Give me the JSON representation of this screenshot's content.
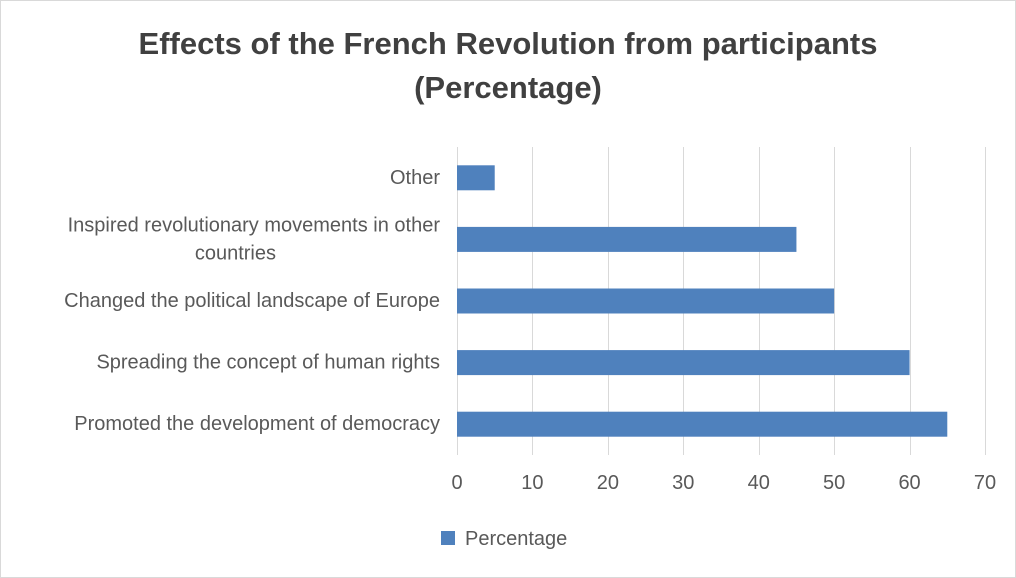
{
  "chart_data": {
    "type": "bar",
    "orientation": "horizontal",
    "title": "Effects of the French Revolution from participants (Percentage)",
    "title_lines": [
      "Effects of the French Revolution from participants",
      "(Percentage)"
    ],
    "categories": [
      "Promoted the development of democracy",
      "Spreading the concept of human rights",
      "Changed the political landscape of Europe",
      "Inspired revolutionary movements in other countries",
      "Other"
    ],
    "category_label_lines": [
      [
        "Promoted the development of democracy"
      ],
      [
        "Spreading the concept of human rights"
      ],
      [
        "Changed the political landscape of Europe"
      ],
      [
        "Inspired revolutionary movements in other",
        "countries"
      ],
      [
        "Other"
      ]
    ],
    "series": [
      {
        "name": "Percentage",
        "values": [
          65,
          60,
          50,
          45,
          5
        ],
        "color": "#4f81bd"
      }
    ],
    "xlim": [
      0,
      70
    ],
    "x_ticks": [
      0,
      10,
      20,
      30,
      40,
      50,
      60,
      70
    ],
    "grid": true,
    "legend_position": "bottom"
  },
  "colors": {
    "bar": "#4f81bd",
    "grid": "#d9d9d9",
    "text": "#595959",
    "title": "#404040"
  }
}
